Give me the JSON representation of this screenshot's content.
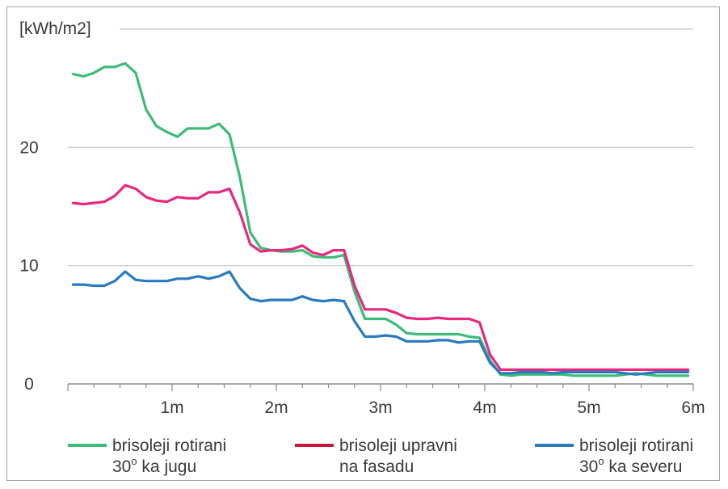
{
  "chart_data": {
    "type": "line",
    "ylabel": "[kWh/m2]",
    "ylim": [
      0,
      30
    ],
    "yticks": [
      0,
      10,
      20
    ],
    "ytick_labels": [
      "0",
      "10",
      "20"
    ],
    "xlim": [
      0,
      6
    ],
    "xticks": [
      1,
      2,
      3,
      4,
      5,
      6
    ],
    "xtick_labels": [
      "1m",
      "2m",
      "3m",
      "4m",
      "5m",
      "6m"
    ],
    "grid": "horizontal",
    "legend_position": "bottom",
    "x": [
      0.05,
      0.15,
      0.25,
      0.35,
      0.45,
      0.55,
      0.65,
      0.75,
      0.85,
      0.95,
      1.05,
      1.15,
      1.25,
      1.35,
      1.45,
      1.55,
      1.65,
      1.75,
      1.85,
      1.95,
      2.05,
      2.15,
      2.25,
      2.35,
      2.45,
      2.55,
      2.65,
      2.75,
      2.85,
      2.95,
      3.05,
      3.15,
      3.25,
      3.35,
      3.45,
      3.55,
      3.65,
      3.75,
      3.85,
      3.95,
      4.05,
      4.15,
      4.25,
      4.35,
      4.45,
      4.55,
      4.65,
      4.75,
      4.85,
      4.95,
      5.05,
      5.15,
      5.25,
      5.35,
      5.45,
      5.55,
      5.65,
      5.75,
      5.85,
      5.95
    ],
    "series": [
      {
        "name_line1": "brisoleji rotirani",
        "name_line2_pre": "30",
        "name_line2_sup": "o",
        "name_line2_post": " ka jugu",
        "color": "#3dbb78",
        "values": [
          26.2,
          26.0,
          26.3,
          26.8,
          26.8,
          27.1,
          26.3,
          23.2,
          21.8,
          21.3,
          20.9,
          21.6,
          21.6,
          21.6,
          22.0,
          21.1,
          17.5,
          12.8,
          11.5,
          11.3,
          11.2,
          11.2,
          11.3,
          10.8,
          10.7,
          10.7,
          10.9,
          7.8,
          5.5,
          5.5,
          5.5,
          5.0,
          4.3,
          4.2,
          4.2,
          4.2,
          4.2,
          4.2,
          4.0,
          3.9,
          2.0,
          0.8,
          0.7,
          0.8,
          0.8,
          0.8,
          0.8,
          0.8,
          0.7,
          0.7,
          0.7,
          0.7,
          0.7,
          0.8,
          0.9,
          0.8,
          0.7,
          0.7,
          0.7,
          0.7
        ]
      },
      {
        "name_line1": "brisoleji upravni",
        "name_line2": "na fasadu",
        "legend_color": "#c8173a",
        "color": "#e8287c",
        "values": [
          15.3,
          15.2,
          15.3,
          15.4,
          15.9,
          16.8,
          16.5,
          15.8,
          15.5,
          15.4,
          15.8,
          15.7,
          15.7,
          16.2,
          16.2,
          16.5,
          14.5,
          11.8,
          11.2,
          11.3,
          11.3,
          11.4,
          11.7,
          11.1,
          10.9,
          11.3,
          11.3,
          8.3,
          6.3,
          6.3,
          6.3,
          6.0,
          5.6,
          5.5,
          5.5,
          5.6,
          5.5,
          5.5,
          5.5,
          5.2,
          2.5,
          1.2,
          1.2,
          1.2,
          1.2,
          1.2,
          1.2,
          1.2,
          1.2,
          1.2,
          1.2,
          1.2,
          1.2,
          1.2,
          1.2,
          1.2,
          1.2,
          1.2,
          1.2,
          1.2
        ]
      },
      {
        "name_line1": "brisoleji rotirani",
        "name_line2_pre": "30",
        "name_line2_sup": "o",
        "name_line2_post": " ka severu",
        "color": "#2a7ac0",
        "values": [
          8.4,
          8.4,
          8.3,
          8.3,
          8.7,
          9.5,
          8.8,
          8.7,
          8.7,
          8.7,
          8.9,
          8.9,
          9.1,
          8.9,
          9.1,
          9.5,
          8.1,
          7.2,
          7.0,
          7.1,
          7.1,
          7.1,
          7.4,
          7.1,
          7.0,
          7.1,
          7.0,
          5.3,
          4.0,
          4.0,
          4.1,
          4.0,
          3.6,
          3.6,
          3.6,
          3.7,
          3.7,
          3.5,
          3.6,
          3.6,
          1.8,
          0.9,
          0.9,
          1.0,
          1.0,
          1.0,
          0.9,
          1.0,
          1.0,
          1.0,
          1.0,
          1.0,
          1.0,
          0.9,
          0.8,
          0.9,
          1.0,
          1.0,
          1.0,
          1.0
        ]
      }
    ]
  }
}
